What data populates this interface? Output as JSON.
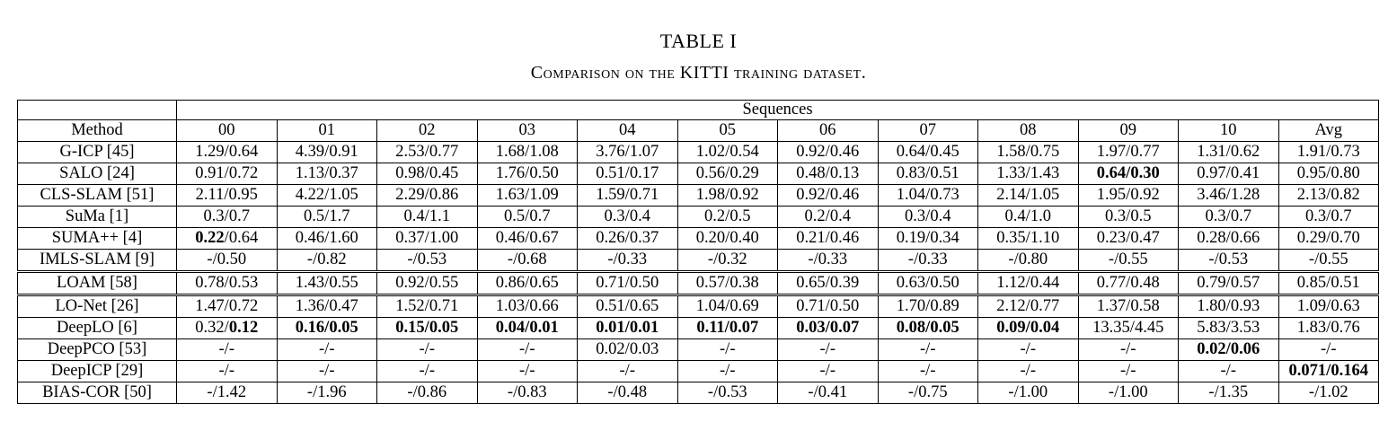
{
  "caption": {
    "label": "TABLE I",
    "title": "Comparison on the KITTI training dataset."
  },
  "chart_data": {
    "type": "table",
    "header": {
      "group_label": "Sequences",
      "method_label": "Method",
      "columns": [
        "00",
        "01",
        "02",
        "03",
        "04",
        "05",
        "06",
        "07",
        "08",
        "09",
        "10",
        "Avg"
      ]
    },
    "rows": [
      {
        "method": "G-ICP [45]",
        "cells": [
          {
            "a": "1.29",
            "b": "0.64"
          },
          {
            "a": "4.39",
            "b": "0.91"
          },
          {
            "a": "2.53",
            "b": "0.77"
          },
          {
            "a": "1.68",
            "b": "1.08"
          },
          {
            "a": "3.76",
            "b": "1.07"
          },
          {
            "a": "1.02",
            "b": "0.54"
          },
          {
            "a": "0.92",
            "b": "0.46"
          },
          {
            "a": "0.64",
            "b": "0.45"
          },
          {
            "a": "1.58",
            "b": "0.75"
          },
          {
            "a": "1.97",
            "b": "0.77"
          },
          {
            "a": "1.31",
            "b": "0.62"
          },
          {
            "a": "1.91",
            "b": "0.73"
          }
        ]
      },
      {
        "method": "SALO [24]",
        "cells": [
          {
            "a": "0.91",
            "b": "0.72"
          },
          {
            "a": "1.13",
            "b": "0.37"
          },
          {
            "a": "0.98",
            "b": "0.45"
          },
          {
            "a": "1.76",
            "b": "0.50"
          },
          {
            "a": "0.51",
            "b": "0.17"
          },
          {
            "a": "0.56",
            "b": "0.29"
          },
          {
            "a": "0.48",
            "b": "0.13"
          },
          {
            "a": "0.83",
            "b": "0.51"
          },
          {
            "a": "1.33",
            "b": "1.43"
          },
          {
            "a": "0.64",
            "b": "0.30",
            "ba": true,
            "bb": true
          },
          {
            "a": "0.97",
            "b": "0.41"
          },
          {
            "a": "0.95",
            "b": "0.80"
          }
        ]
      },
      {
        "method": "CLS-SLAM [51]",
        "cells": [
          {
            "a": "2.11",
            "b": "0.95"
          },
          {
            "a": "4.22",
            "b": "1.05"
          },
          {
            "a": "2.29",
            "b": "0.86"
          },
          {
            "a": "1.63",
            "b": "1.09"
          },
          {
            "a": "1.59",
            "b": "0.71"
          },
          {
            "a": "1.98",
            "b": "0.92"
          },
          {
            "a": "0.92",
            "b": "0.46"
          },
          {
            "a": "1.04",
            "b": "0.73"
          },
          {
            "a": "2.14",
            "b": "1.05"
          },
          {
            "a": "1.95",
            "b": "0.92"
          },
          {
            "a": "3.46",
            "b": "1.28"
          },
          {
            "a": "2.13",
            "b": "0.82"
          }
        ]
      },
      {
        "method": "SuMa [1]",
        "cells": [
          {
            "a": "0.3",
            "b": "0.7"
          },
          {
            "a": "0.5",
            "b": "1.7"
          },
          {
            "a": "0.4",
            "b": "1.1"
          },
          {
            "a": "0.5",
            "b": "0.7"
          },
          {
            "a": "0.3",
            "b": "0.4"
          },
          {
            "a": "0.2",
            "b": "0.5"
          },
          {
            "a": "0.2",
            "b": "0.4"
          },
          {
            "a": "0.3",
            "b": "0.4"
          },
          {
            "a": "0.4",
            "b": "1.0"
          },
          {
            "a": "0.3",
            "b": "0.5"
          },
          {
            "a": "0.3",
            "b": "0.7"
          },
          {
            "a": "0.3",
            "b": "0.7"
          }
        ]
      },
      {
        "method": "SUMA++ [4]",
        "cells": [
          {
            "a": "0.22",
            "b": "0.64",
            "ba": true
          },
          {
            "a": "0.46",
            "b": "1.60"
          },
          {
            "a": "0.37",
            "b": "1.00"
          },
          {
            "a": "0.46",
            "b": "0.67"
          },
          {
            "a": "0.26",
            "b": "0.37"
          },
          {
            "a": "0.20",
            "b": "0.40"
          },
          {
            "a": "0.21",
            "b": "0.46"
          },
          {
            "a": "0.19",
            "b": "0.34"
          },
          {
            "a": "0.35",
            "b": "1.10"
          },
          {
            "a": "0.23",
            "b": "0.47"
          },
          {
            "a": "0.28",
            "b": "0.66"
          },
          {
            "a": "0.29",
            "b": "0.70"
          }
        ]
      },
      {
        "method": "IMLS-SLAM [9]",
        "cells": [
          {
            "a": "-",
            "b": "0.50"
          },
          {
            "a": "-",
            "b": "0.82"
          },
          {
            "a": "-",
            "b": "0.53"
          },
          {
            "a": "-",
            "b": "0.68"
          },
          {
            "a": "-",
            "b": "0.33"
          },
          {
            "a": "-",
            "b": "0.32"
          },
          {
            "a": "-",
            "b": "0.33"
          },
          {
            "a": "-",
            "b": "0.33"
          },
          {
            "a": "-",
            "b": "0.80"
          },
          {
            "a": "-",
            "b": "0.55"
          },
          {
            "a": "-",
            "b": "0.53"
          },
          {
            "a": "-",
            "b": "0.55"
          }
        ]
      },
      {
        "method": "LOAM [58]",
        "gap": true,
        "cells": [
          {
            "a": "0.78",
            "b": "0.53"
          },
          {
            "a": "1.43",
            "b": "0.55"
          },
          {
            "a": "0.92",
            "b": "0.55"
          },
          {
            "a": "0.86",
            "b": "0.65"
          },
          {
            "a": "0.71",
            "b": "0.50"
          },
          {
            "a": "0.57",
            "b": "0.38"
          },
          {
            "a": "0.65",
            "b": "0.39"
          },
          {
            "a": "0.63",
            "b": "0.50"
          },
          {
            "a": "1.12",
            "b": "0.44"
          },
          {
            "a": "0.77",
            "b": "0.48"
          },
          {
            "a": "0.79",
            "b": "0.57"
          },
          {
            "a": "0.85",
            "b": "0.51"
          }
        ]
      },
      {
        "method": "LO-Net [26]",
        "gap": true,
        "cells": [
          {
            "a": "1.47",
            "b": "0.72"
          },
          {
            "a": "1.36",
            "b": "0.47"
          },
          {
            "a": "1.52",
            "b": "0.71"
          },
          {
            "a": "1.03",
            "b": "0.66"
          },
          {
            "a": "0.51",
            "b": "0.65"
          },
          {
            "a": "1.04",
            "b": "0.69"
          },
          {
            "a": "0.71",
            "b": "0.50"
          },
          {
            "a": "1.70",
            "b": "0.89"
          },
          {
            "a": "2.12",
            "b": "0.77"
          },
          {
            "a": "1.37",
            "b": "0.58"
          },
          {
            "a": "1.80",
            "b": "0.93"
          },
          {
            "a": "1.09",
            "b": "0.63"
          }
        ]
      },
      {
        "method": "DeepLO [6]",
        "cells": [
          {
            "a": "0.32",
            "b": "0.12",
            "bb": true
          },
          {
            "a": "0.16",
            "b": "0.05",
            "ba": true,
            "bb": true
          },
          {
            "a": "0.15",
            "b": "0.05",
            "ba": true,
            "bb": true
          },
          {
            "a": "0.04",
            "b": "0.01",
            "ba": true,
            "bb": true
          },
          {
            "a": "0.01",
            "b": "0.01",
            "ba": true,
            "bb": true
          },
          {
            "a": "0.11",
            "b": "0.07",
            "ba": true,
            "bb": true
          },
          {
            "a": "0.03",
            "b": "0.07",
            "ba": true,
            "bb": true
          },
          {
            "a": "0.08",
            "b": "0.05",
            "ba": true,
            "bb": true
          },
          {
            "a": "0.09",
            "b": "0.04",
            "ba": true,
            "bb": true
          },
          {
            "a": "13.35",
            "b": "4.45"
          },
          {
            "a": "5.83",
            "b": "3.53"
          },
          {
            "a": "1.83",
            "b": "0.76"
          }
        ]
      },
      {
        "method": "DeepPCO [53]",
        "cells": [
          {
            "a": "-",
            "b": "-"
          },
          {
            "a": "-",
            "b": "-"
          },
          {
            "a": "-",
            "b": "-"
          },
          {
            "a": "-",
            "b": "-"
          },
          {
            "a": "0.02",
            "b": "0.03"
          },
          {
            "a": "-",
            "b": "-"
          },
          {
            "a": "-",
            "b": "-"
          },
          {
            "a": "-",
            "b": "-"
          },
          {
            "a": "-",
            "b": "-"
          },
          {
            "a": "-",
            "b": "-"
          },
          {
            "a": "0.02",
            "b": "0.06",
            "ba": true,
            "bb": true
          },
          {
            "a": "-",
            "b": "-"
          }
        ]
      },
      {
        "method": "DeepICP [29]",
        "cells": [
          {
            "a": "-",
            "b": "-"
          },
          {
            "a": "-",
            "b": "-"
          },
          {
            "a": "-",
            "b": "-"
          },
          {
            "a": "-",
            "b": "-"
          },
          {
            "a": "-",
            "b": "-"
          },
          {
            "a": "-",
            "b": "-"
          },
          {
            "a": "-",
            "b": "-"
          },
          {
            "a": "-",
            "b": "-"
          },
          {
            "a": "-",
            "b": "-"
          },
          {
            "a": "-",
            "b": "-"
          },
          {
            "a": "-",
            "b": "-"
          },
          {
            "a": "0.071",
            "b": "0.164",
            "ba": true,
            "bb": true
          }
        ]
      },
      {
        "method": "BIAS-COR [50]",
        "cells": [
          {
            "a": "-",
            "b": "1.42"
          },
          {
            "a": "-",
            "b": "1.96"
          },
          {
            "a": "-",
            "b": "0.86"
          },
          {
            "a": "-",
            "b": "0.83"
          },
          {
            "a": "-",
            "b": "0.48"
          },
          {
            "a": "-",
            "b": "0.53"
          },
          {
            "a": "-",
            "b": "0.41"
          },
          {
            "a": "-",
            "b": "0.75"
          },
          {
            "a": "-",
            "b": "1.00"
          },
          {
            "a": "-",
            "b": "1.00"
          },
          {
            "a": "-",
            "b": "1.35"
          },
          {
            "a": "-",
            "b": "1.02"
          }
        ]
      }
    ]
  }
}
